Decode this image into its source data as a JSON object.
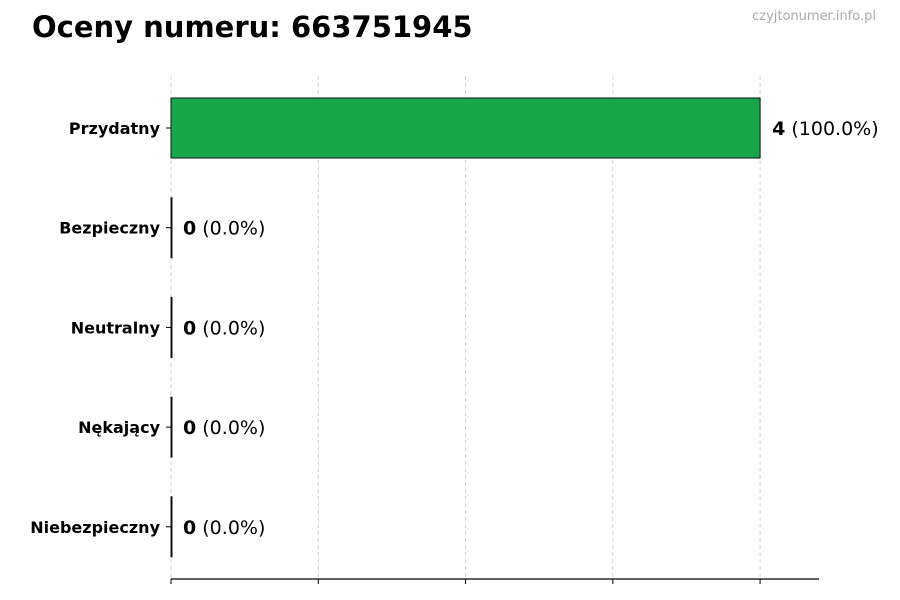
{
  "chart_data": {
    "type": "bar",
    "orientation": "horizontal",
    "title": "Oceny numeru: 663751945",
    "watermark": "czyjtonumer.info.pl",
    "categories": [
      "Przydatny",
      "Bezpieczny",
      "Neutralny",
      "Nękający",
      "Niebezpieczny"
    ],
    "values": [
      4,
      0,
      0,
      0,
      0
    ],
    "percent_labels": [
      "(100.0%)",
      "(0.0%)",
      "(0.0%)",
      "(0.0%)",
      "(0.0%)"
    ],
    "colors": [
      "#17a64a",
      "#17a64a",
      "#17a64a",
      "#17a64a",
      "#17a64a"
    ],
    "xlim": [
      0,
      4.4
    ],
    "xticks": [
      0,
      1,
      2,
      3,
      4
    ],
    "xtick_labels_shown": false,
    "grid": "x, dashed",
    "xlabel": "",
    "ylabel": ""
  }
}
